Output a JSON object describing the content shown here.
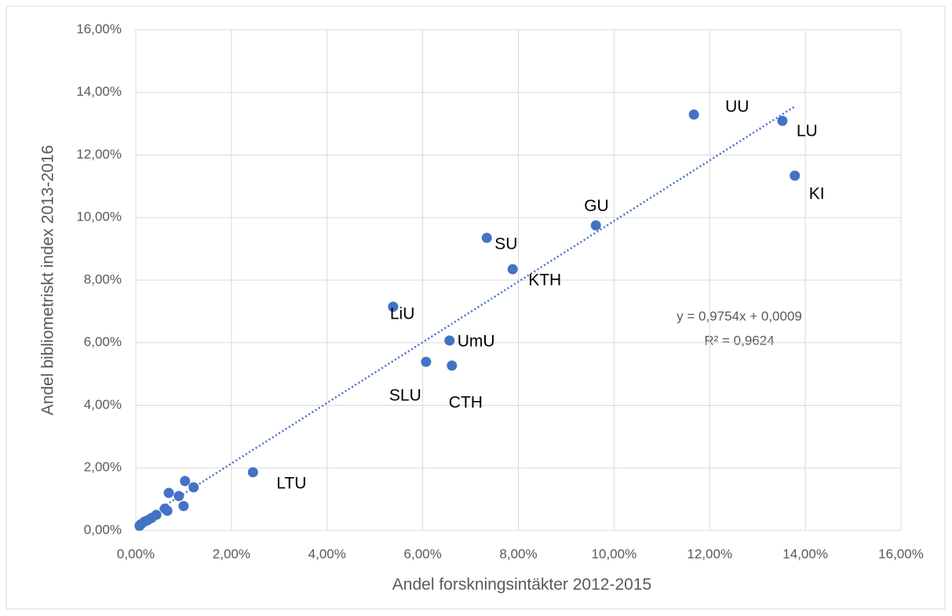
{
  "chart_data": {
    "type": "scatter",
    "x_label": "Andel forskningsintäkter 2012-2015",
    "y_label": "Andel bibliometriskt index 2013-2016",
    "series": [
      {
        "color": "#4472c4",
        "x": [
          11.67,
          13.52,
          13.78,
          9.62,
          7.34,
          7.88,
          5.38,
          6.56,
          6.07,
          6.61,
          2.45,
          1.03,
          0.69,
          0.9,
          1.21,
          1.0,
          0.61,
          0.66,
          0.43,
          0.33,
          0.25,
          0.18,
          0.11,
          0.08
        ],
        "values": [
          13.29,
          13.09,
          11.34,
          9.75,
          9.35,
          8.35,
          7.15,
          6.07,
          5.39,
          5.27,
          1.86,
          1.58,
          1.2,
          1.1,
          1.38,
          0.78,
          0.7,
          0.63,
          0.5,
          0.4,
          0.33,
          0.28,
          0.2,
          0.15
        ],
        "point_labels": [
          "UU",
          "LU",
          "KI",
          "GU",
          "SU",
          "KTH",
          "LiU",
          "UmU",
          "SLU",
          "CTH",
          "LTU",
          null,
          null,
          null,
          null,
          null,
          null,
          null,
          null,
          null,
          null,
          null,
          null,
          null
        ]
      }
    ],
    "trendline": {
      "equation": "y = 0,9754x + 0,0009",
      "r_squared": "R² = 0,9624"
    },
    "xlim": [
      0,
      16
    ],
    "ylim": [
      0,
      16
    ],
    "xticks": [
      {
        "value": 0,
        "label": "0,00%"
      },
      {
        "value": 2,
        "label": "2,00%"
      },
      {
        "value": 4,
        "label": "4,00%"
      },
      {
        "value": 6,
        "label": "6,00%"
      },
      {
        "value": 8,
        "label": "8,00%"
      },
      {
        "value": 10,
        "label": "10,00%"
      },
      {
        "value": 12,
        "label": "12,00%"
      },
      {
        "value": 14,
        "label": "14,00%"
      },
      {
        "value": 16,
        "label": "16,00%"
      }
    ],
    "yticks": [
      {
        "value": 0,
        "label": "0,00%"
      },
      {
        "value": 2,
        "label": "2,00%"
      },
      {
        "value": 4,
        "label": "4,00%"
      },
      {
        "value": 6,
        "label": "6,00%"
      },
      {
        "value": 8,
        "label": "8,00%"
      },
      {
        "value": 10,
        "label": "10,00%"
      },
      {
        "value": 12,
        "label": "12,00%"
      },
      {
        "value": 14,
        "label": "14,00%"
      },
      {
        "value": 16,
        "label": "16,00%"
      }
    ],
    "grid": true
  }
}
